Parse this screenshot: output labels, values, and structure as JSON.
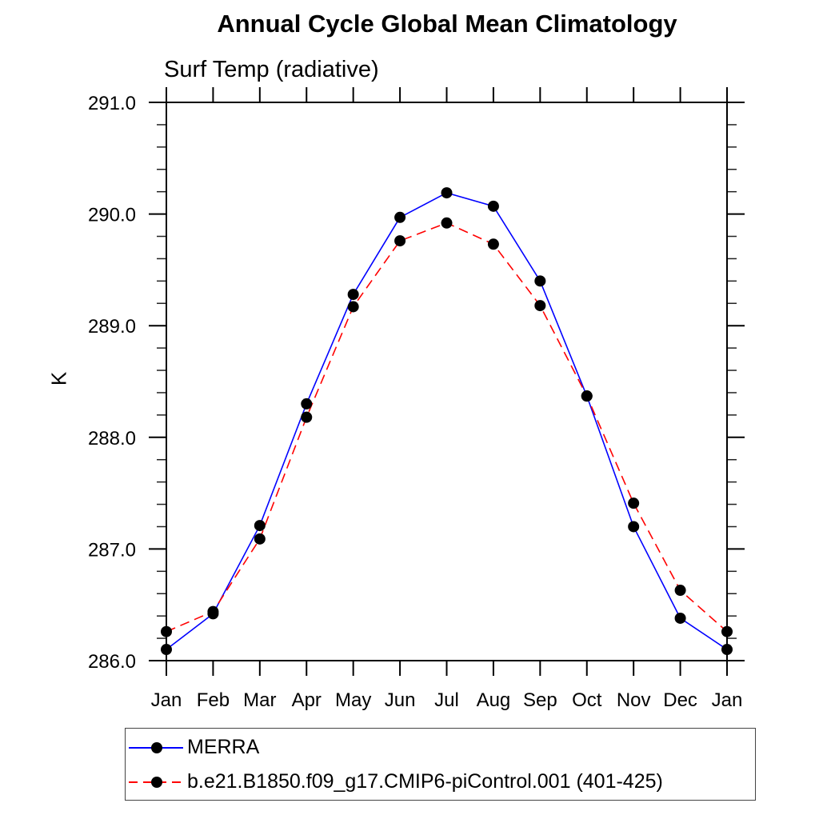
{
  "chart_data": {
    "type": "line",
    "title": "Annual Cycle Global Mean Climatology",
    "subtitle": "Surf Temp (radiative)",
    "ylabel": "K",
    "x_categories": [
      "Jan",
      "Feb",
      "Mar",
      "Apr",
      "May",
      "Jun",
      "Jul",
      "Aug",
      "Sep",
      "Oct",
      "Nov",
      "Dec",
      "Jan"
    ],
    "ylim": [
      286.0,
      291.0
    ],
    "y_tick_labels": [
      "286.0",
      "287.0",
      "288.0",
      "289.0",
      "290.0",
      "291.0"
    ],
    "y_major_step": 1.0,
    "y_minor_step": 0.2,
    "grid": false,
    "legend_position": "bottom-left",
    "axis_color": "#000000",
    "marker_color": "#000000",
    "series": [
      {
        "name": "MERRA",
        "color": "#0000ff",
        "style": "solid",
        "marker": "filled-circle",
        "values": [
          286.1,
          286.42,
          287.21,
          288.3,
          289.28,
          289.97,
          290.19,
          290.07,
          289.4,
          288.37,
          287.2,
          286.38,
          286.1
        ]
      },
      {
        "name": "b.e21.B1850.f09_g17.CMIP6-piControl.001 (401-425)",
        "color": "#ff0000",
        "style": "dashed",
        "marker": "filled-circle",
        "values": [
          286.26,
          286.44,
          287.09,
          288.18,
          289.17,
          289.76,
          289.92,
          289.73,
          289.18,
          288.37,
          287.41,
          286.63,
          286.26
        ]
      }
    ]
  }
}
